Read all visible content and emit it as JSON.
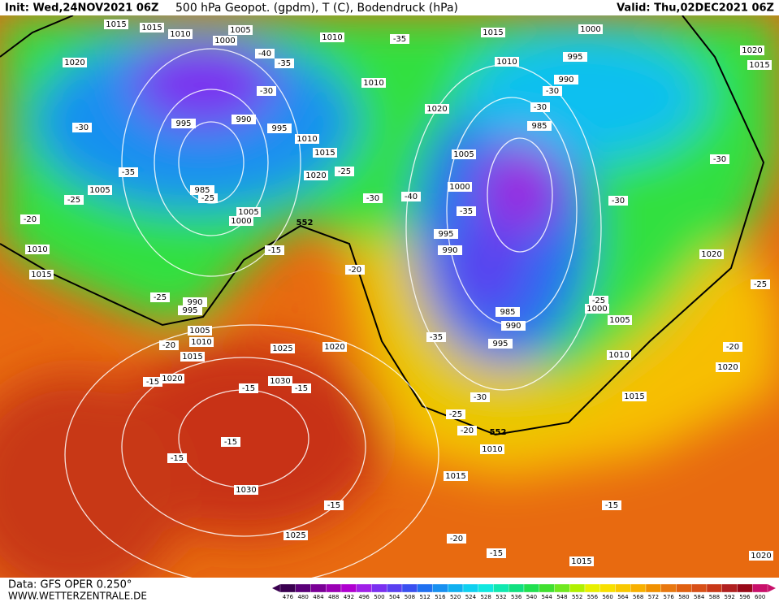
{
  "header": {
    "init": "Init: Wed,24NOV2021 06Z",
    "title": "500 hPa Geopot. (gpdm), T (C), Bodendruck (hPa)",
    "valid": "Valid: Thu,02DEC2021 06Z"
  },
  "footer": {
    "data": "Data: GFS OPER 0.250°",
    "site": "WWW.WETTERZENTRALE.DE"
  },
  "map": {
    "isobar_labels": [
      "1015",
      "1015",
      "1010",
      "1005",
      "1000",
      "1010",
      "1015",
      "1000",
      "1010",
      "995",
      "990",
      "1010",
      "1020",
      "1020",
      "1015",
      "1020",
      "995",
      "990",
      "995",
      "1010",
      "1015",
      "985",
      "1005",
      "1020",
      "1000",
      "985",
      "1005",
      "1005",
      "1000",
      "995",
      "990",
      "1010",
      "1015",
      "990",
      "995",
      "1005",
      "1010",
      "1015",
      "1025",
      "1020",
      "1020",
      "1030",
      "985",
      "990",
      "995",
      "1000",
      "1005",
      "1010",
      "1020",
      "1020",
      "1015",
      "1010",
      "1015",
      "1030",
      "1025",
      "1015",
      "1020"
    ],
    "temperature_labels": [
      "-35",
      "-40",
      "-35",
      "-30",
      "-30",
      "-35",
      "-25",
      "-20",
      "-25",
      "-25",
      "-30",
      "-40",
      "-35",
      "-30",
      "-30",
      "-30",
      "-30",
      "-15",
      "-20",
      "-25",
      "-20",
      "-15",
      "-15",
      "-15",
      "-15",
      "-15",
      "-25",
      "-25",
      "-20",
      "-35",
      "-30",
      "-25",
      "-20",
      "-15",
      "-15",
      "-20",
      "-15"
    ],
    "contour_552_labels": [
      "552",
      "552"
    ]
  },
  "legend": {
    "values": [
      476,
      480,
      484,
      488,
      492,
      496,
      500,
      504,
      508,
      512,
      516,
      520,
      524,
      528,
      532,
      536,
      540,
      544,
      548,
      552,
      556,
      560,
      564,
      568,
      572,
      576,
      580,
      584,
      588,
      592,
      596,
      600
    ],
    "colors": [
      "#3a0050",
      "#5a0078",
      "#7a0096",
      "#9a00b4",
      "#b000d0",
      "#a020e8",
      "#7a30f0",
      "#5a40f0",
      "#3a50f0",
      "#2070f0",
      "#1890f0",
      "#10b0f0",
      "#10d0f0",
      "#10e8e0",
      "#10e8b0",
      "#10e080",
      "#20e050",
      "#40e030",
      "#70e820",
      "#b0f000",
      "#e8f000",
      "#f8e000",
      "#f8c800",
      "#f8b000",
      "#f09000",
      "#e87810",
      "#e06010",
      "#d85018",
      "#c83818",
      "#b02020",
      "#980818",
      "#c8106a"
    ]
  }
}
